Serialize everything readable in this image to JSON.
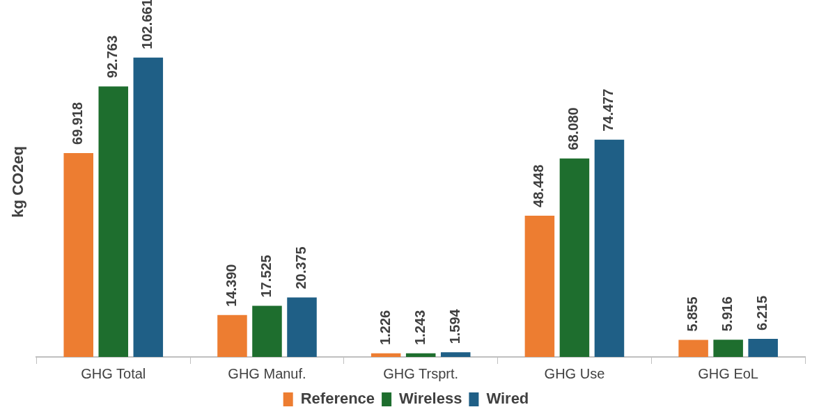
{
  "chart_data": {
    "type": "bar",
    "ylabel": "kg CO2eq",
    "categories": [
      "GHG Total",
      "GHG Manuf.",
      "GHG Trsprt.",
      "GHG Use",
      "GHG EoL"
    ],
    "series": [
      {
        "name": "Reference",
        "color": "#ed7d31",
        "values": [
          69.918,
          14.39,
          1.226,
          48.448,
          5.855
        ],
        "value_labels": [
          "69.918",
          "14.390",
          "1.226",
          "48.448",
          "5.855"
        ]
      },
      {
        "name": "Wireless",
        "color": "#1e6e2e",
        "values": [
          92.763,
          17.525,
          1.243,
          68.08,
          5.916
        ],
        "value_labels": [
          "92.763",
          "17.525",
          "1.243",
          "68.080",
          "5.916"
        ]
      },
      {
        "name": "Wired",
        "color": "#1f5f86",
        "values": [
          102.661,
          20.375,
          1.594,
          74.477,
          6.215
        ],
        "value_labels": [
          "102.661",
          "20.375",
          "1.594",
          "74.477",
          "6.215"
        ]
      }
    ],
    "grid": false,
    "legend": "bottom"
  }
}
